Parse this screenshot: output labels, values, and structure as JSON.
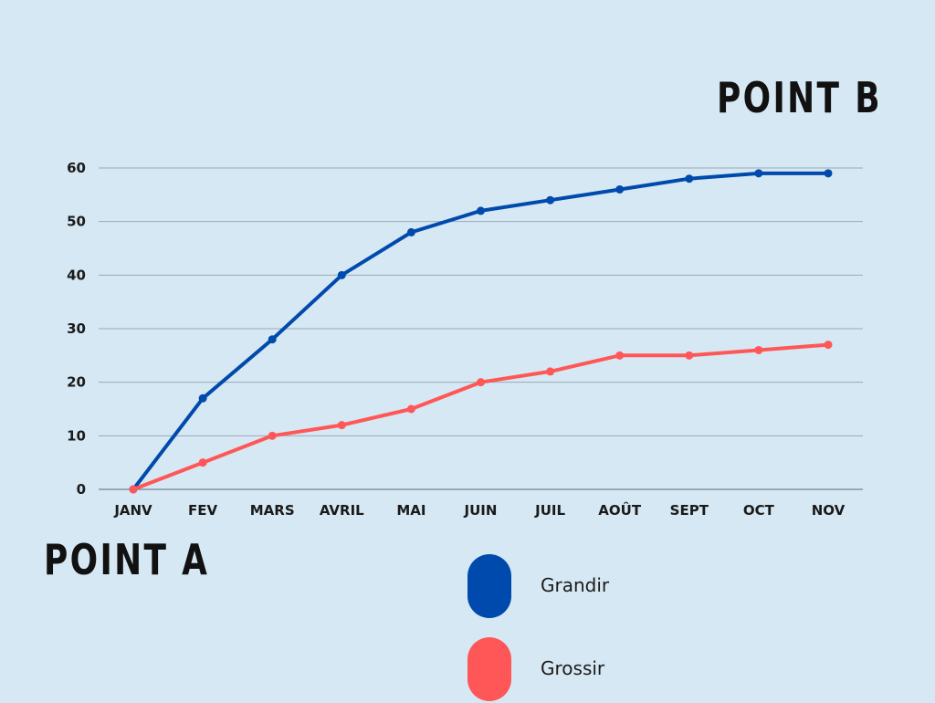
{
  "labels": {
    "point_a": "POINT A",
    "point_b": "POINT B"
  },
  "chart_data": {
    "type": "line",
    "categories": [
      "JANV",
      "FEV",
      "MARS",
      "AVRIL",
      "MAI",
      "JUIN",
      "JUIL",
      "AOÛT",
      "SEPT",
      "OCT",
      "NOV"
    ],
    "series": [
      {
        "name": "Grandir",
        "color": "#004aad",
        "values": [
          0,
          17,
          28,
          40,
          48,
          52,
          54,
          56,
          58,
          59,
          59
        ]
      },
      {
        "name": "Grossir",
        "color": "#ff5757",
        "values": [
          0,
          5,
          10,
          12,
          15,
          20,
          22,
          25,
          25,
          26,
          27
        ]
      }
    ],
    "ylim": [
      0,
      60
    ],
    "yticks": [
      0,
      10,
      20,
      30,
      40,
      50,
      60
    ],
    "grid": true,
    "legend": "bottom-center"
  }
}
